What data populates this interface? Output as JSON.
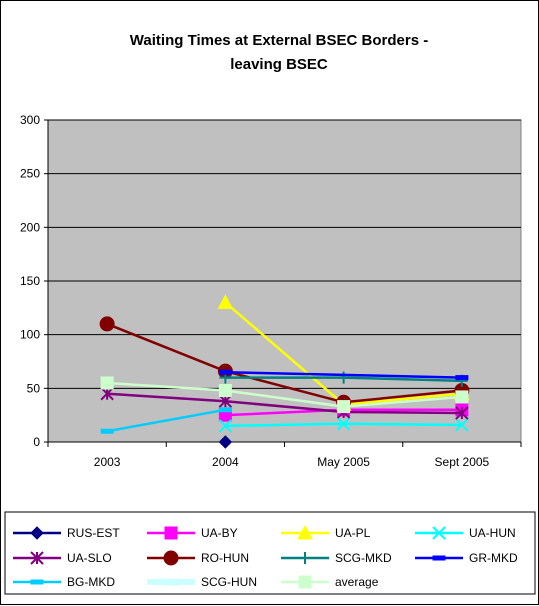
{
  "chart_data": {
    "type": "line",
    "title_lines": [
      "Waiting Times at External BSEC Borders -",
      "leaving BSEC"
    ],
    "xlabel": "",
    "ylabel": "",
    "categories": [
      "2003",
      "2004",
      "May 2005",
      "Sept 2005"
    ],
    "ylim": [
      0,
      300
    ],
    "yticks": [
      0,
      50,
      100,
      150,
      200,
      250,
      300
    ],
    "grid": true,
    "plot_background": "#c0c0c0",
    "legend_position": "bottom",
    "series": [
      {
        "name": "RUS-EST",
        "color": "#000080",
        "marker": "diamond",
        "values": [
          null,
          0,
          null,
          null
        ]
      },
      {
        "name": "UA-BY",
        "color": "#ff00ff",
        "marker": "square",
        "values": [
          null,
          25,
          30,
          30
        ]
      },
      {
        "name": "UA-PL",
        "color": "#ffff00",
        "marker": "triangle",
        "values": [
          null,
          130,
          35,
          45
        ]
      },
      {
        "name": "UA-HUN",
        "color": "#00ffff",
        "marker": "x",
        "values": [
          null,
          15,
          17,
          16
        ]
      },
      {
        "name": "UA-SLO",
        "color": "#800080",
        "marker": "star",
        "values": [
          45,
          38,
          28,
          27
        ]
      },
      {
        "name": "RO-HUN",
        "color": "#800000",
        "marker": "circle",
        "values": [
          110,
          66,
          37,
          48
        ]
      },
      {
        "name": "SCG-MKD",
        "color": "#008080",
        "marker": "plus",
        "values": [
          null,
          60,
          60,
          57
        ]
      },
      {
        "name": "GR-MKD",
        "color": "#0000ff",
        "marker": "dash",
        "values": [
          null,
          65,
          null,
          60
        ]
      },
      {
        "name": "BG-MKD",
        "color": "#00ccff",
        "marker": "dash",
        "values": [
          10,
          30,
          null,
          null
        ]
      },
      {
        "name": "SCG-HUN",
        "color": "#ccffff",
        "marker": "thickdash",
        "values": [
          null,
          null,
          null,
          null
        ]
      },
      {
        "name": "average",
        "color": "#ccffcc",
        "marker": "square",
        "values": [
          55,
          48,
          33,
          42
        ]
      }
    ]
  }
}
